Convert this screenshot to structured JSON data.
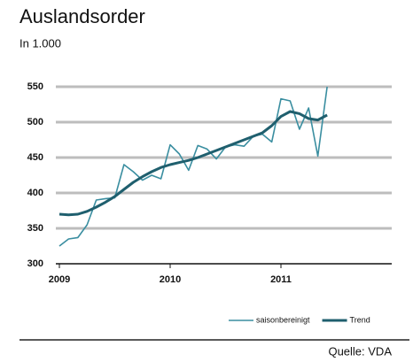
{
  "chart_data": {
    "type": "line",
    "title": "Auslandsorder",
    "subtitle": "In 1.000",
    "source": "Quelle: VDA",
    "x": [
      2009,
      2009.083,
      2009.167,
      2009.25,
      2009.333,
      2009.417,
      2009.5,
      2009.583,
      2009.667,
      2009.75,
      2009.833,
      2009.917,
      2010,
      2010.083,
      2010.167,
      2010.25,
      2010.333,
      2010.417,
      2010.5,
      2010.583,
      2010.667,
      2010.75,
      2010.833,
      2010.917,
      2011,
      2011.083,
      2011.167,
      2011.25,
      2011.333,
      2011.417
    ],
    "series": [
      {
        "name": "saisonbereinigt",
        "color": "#3a8ea0",
        "values": [
          325,
          335,
          337,
          355,
          390,
          392,
          393,
          440,
          430,
          418,
          425,
          420,
          468,
          455,
          432,
          467,
          462,
          448,
          465,
          468,
          466,
          480,
          483,
          472,
          533,
          530,
          490,
          520,
          452,
          550
        ]
      },
      {
        "name": "Trend",
        "color": "#1f5f6e",
        "values": [
          370,
          369,
          370,
          374,
          380,
          387,
          395,
          405,
          415,
          423,
          430,
          436,
          440,
          443,
          446,
          450,
          455,
          460,
          465,
          470,
          475,
          480,
          485,
          495,
          508,
          515,
          512,
          505,
          503,
          510
        ]
      }
    ],
    "xlim": [
      2009,
      2012
    ],
    "xticks": [
      2009,
      2010,
      2011
    ],
    "ylim": [
      300,
      550
    ],
    "yticks": [
      300,
      350,
      400,
      450,
      500,
      550
    ],
    "grid": true,
    "legend": "bottom-right"
  }
}
